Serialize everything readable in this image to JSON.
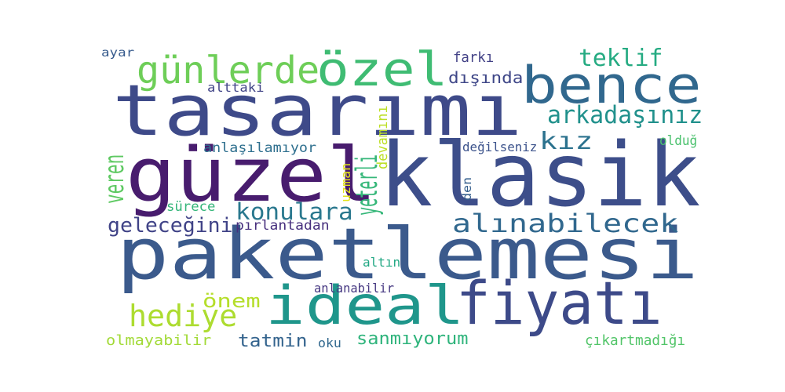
{
  "cloud": {
    "words": [
      {
        "id": "paketlemesi",
        "text": "paketlemesi",
        "color": "#3b5a8c"
      },
      {
        "id": "klasik",
        "text": "klasik",
        "color": "#3d4e8a"
      },
      {
        "id": "tasarimi",
        "text": "tasarımı",
        "color": "#3e4a89"
      },
      {
        "id": "guzel",
        "text": "güzel",
        "color": "#481c6e"
      },
      {
        "id": "ideal",
        "text": "ideal",
        "color": "#1f968b"
      },
      {
        "id": "fiyati",
        "text": "fiyatı",
        "color": "#3d4a89"
      },
      {
        "id": "bence",
        "text": "bence",
        "color": "#31688e"
      },
      {
        "id": "ozel",
        "text": "özel",
        "color": "#3fbc73"
      },
      {
        "id": "gunlerde",
        "text": "günlerde",
        "color": "#6ece58"
      },
      {
        "id": "teklif",
        "text": "teklif",
        "color": "#25ab82"
      },
      {
        "id": "arkadasiniz",
        "text": "arkadaşınız",
        "color": "#21918c"
      },
      {
        "id": "kiz",
        "text": "kız",
        "color": "#2c728e"
      },
      {
        "id": "alinabilecek",
        "text": "alınabilecek",
        "color": "#31688e"
      },
      {
        "id": "veren",
        "text": "veren",
        "color": "#5ec962"
      },
      {
        "id": "yeterli",
        "text": "yeterli",
        "color": "#35b779"
      },
      {
        "id": "konulara",
        "text": "konulara",
        "color": "#2a788e"
      },
      {
        "id": "gelecegini",
        "text": "geleceğini",
        "color": "#404387"
      },
      {
        "id": "hediye",
        "text": "hediye",
        "color": "#addc30"
      },
      {
        "id": "onem",
        "text": "önem",
        "color": "#b5de2b"
      },
      {
        "id": "tatmin",
        "text": "tatmin",
        "color": "#33638d"
      },
      {
        "id": "sanmiyorum",
        "text": "sanmıyorum",
        "color": "#2fb47c"
      },
      {
        "id": "olmayabilir",
        "text": "olmayabilir",
        "color": "#a2da37"
      },
      {
        "id": "farki",
        "text": "farkı",
        "color": "#424186"
      },
      {
        "id": "disinda",
        "text": "dışında",
        "color": "#3f4788"
      },
      {
        "id": "ayar",
        "text": "ayar",
        "color": "#375b8d"
      },
      {
        "id": "alttaki",
        "text": "alttaki",
        "color": "#414487"
      },
      {
        "id": "anlasilamiyor",
        "text": "anlaşılamıyor",
        "color": "#2e6f8e"
      },
      {
        "id": "devamini",
        "text": "devamını",
        "color": "#bddf26"
      },
      {
        "id": "uzman",
        "text": "uzman",
        "color": "#e2e418"
      },
      {
        "id": "degilseniz",
        "text": "değilseniz",
        "color": "#3b528b"
      },
      {
        "id": "oldug",
        "text": "olduğ",
        "color": "#4ac16d"
      },
      {
        "id": "den",
        "text": "den",
        "color": "#355f8d"
      },
      {
        "id": "surece",
        "text": "sürece",
        "color": "#34b679"
      },
      {
        "id": "pirlantadan",
        "text": "pırlantadan",
        "color": "#472f7d"
      },
      {
        "id": "altin",
        "text": "altın",
        "color": "#22a884"
      },
      {
        "id": "anlanabilir",
        "text": "anlanabilir",
        "color": "#453781"
      },
      {
        "id": "oku",
        "text": "oku",
        "color": "#31688e"
      },
      {
        "id": "cikartmadigi",
        "text": "çıkartmadığı",
        "color": "#52c569"
      }
    ]
  }
}
